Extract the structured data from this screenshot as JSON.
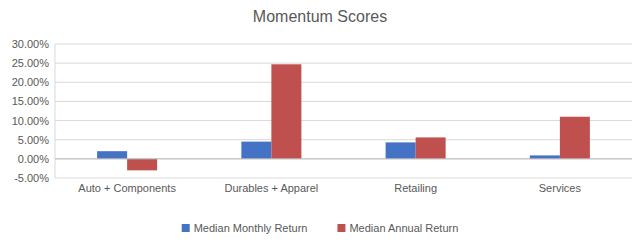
{
  "chart_data": {
    "type": "bar",
    "title": "Momentum Scores",
    "categories": [
      "Auto + Components",
      "Durables + Apparel",
      "Retailing",
      "Services"
    ],
    "series": [
      {
        "name": "Median Monthly Return",
        "color": "#4472c4",
        "values": [
          2.0,
          4.5,
          4.3,
          0.9
        ]
      },
      {
        "name": "Median Annual Return",
        "color": "#c0504d",
        "values": [
          -3.0,
          24.7,
          5.6,
          11.0
        ]
      }
    ],
    "ylim": [
      -5,
      30
    ],
    "yticks": [
      {
        "value": -5,
        "label": "-5.00%"
      },
      {
        "value": 0,
        "label": "0.00%"
      },
      {
        "value": 5,
        "label": "5.00%"
      },
      {
        "value": 10,
        "label": "10.00%"
      },
      {
        "value": 15,
        "label": "15.00%"
      },
      {
        "value": 20,
        "label": "20.00%"
      },
      {
        "value": 25,
        "label": "25.00%"
      },
      {
        "value": 30,
        "label": "30.00%"
      }
    ],
    "grid": true,
    "legend": "bottom"
  }
}
